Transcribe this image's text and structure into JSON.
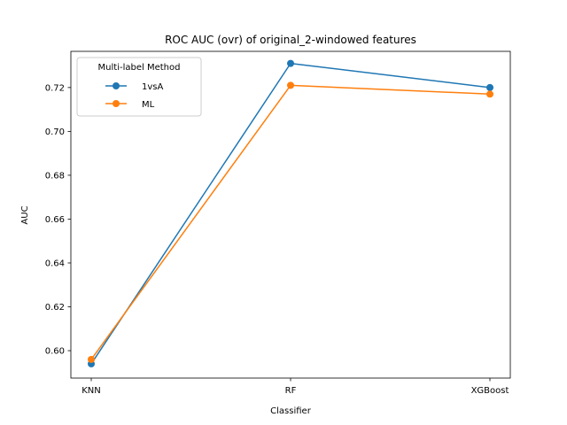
{
  "chart_data": {
    "type": "line",
    "title": "ROC AUC (ovr) of original_2-windowed features",
    "xlabel": "Classifier",
    "ylabel": "AUC",
    "categories": [
      "KNN",
      "RF",
      "XGBoost"
    ],
    "ylim": [
      0.5875,
      0.7365
    ],
    "yticks": [
      0.6,
      0.62,
      0.64,
      0.66,
      0.68,
      0.7,
      0.72
    ],
    "ytick_labels": [
      "0.60",
      "0.62",
      "0.64",
      "0.66",
      "0.68",
      "0.70",
      "0.72"
    ],
    "grid": false,
    "legend": {
      "title": "Multi-label Method",
      "placement": "top-left"
    },
    "series": [
      {
        "name": "1vsA",
        "color": "#1f77b4",
        "values": [
          0.594,
          0.731,
          0.72
        ]
      },
      {
        "name": "ML",
        "color": "#ff7f0e",
        "values": [
          0.596,
          0.721,
          0.717
        ]
      }
    ]
  }
}
